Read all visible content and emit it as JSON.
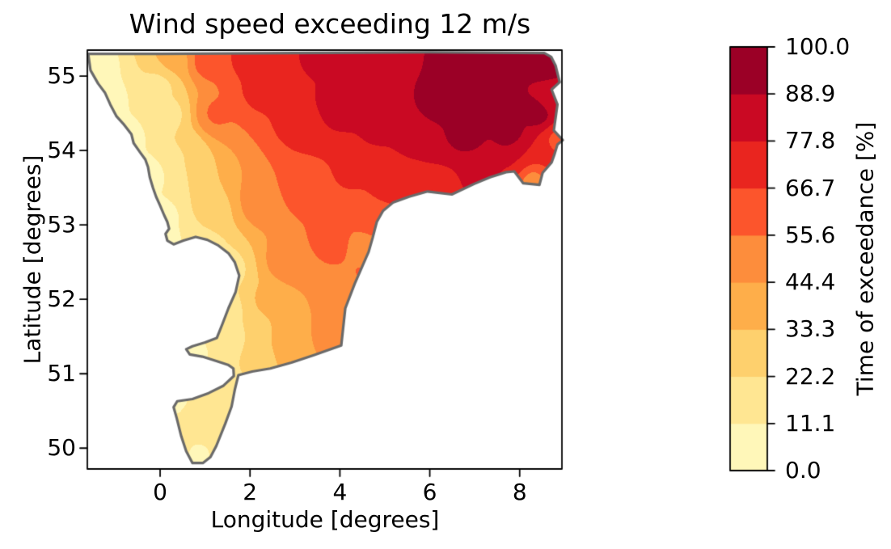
{
  "figure": {
    "background": "#ffffff"
  },
  "chart_data": {
    "type": "filled_contour_map",
    "title": "Wind speed exceeding 12 m/s",
    "xlabel": "Longitude [degrees]",
    "ylabel": "Latitude [degrees]",
    "xlim": [
      -1.62,
      8.94
    ],
    "ylim": [
      49.72,
      55.35
    ],
    "xticks": {
      "values": [
        0,
        2,
        4,
        6,
        8
      ],
      "labels": [
        "0",
        "2",
        "4",
        "6",
        "8"
      ]
    },
    "yticks": {
      "values": [
        50,
        51,
        52,
        53,
        54,
        55
      ],
      "labels": [
        "50",
        "51",
        "52",
        "53",
        "54",
        "55"
      ]
    },
    "grid": false,
    "land_color": "#ffffff",
    "coastline_color": "#6a6a6a",
    "colorbar": {
      "label": "Time of exceedance [%]",
      "vmin": 0.0,
      "vmax": 100.0,
      "levels": [
        0.0,
        11.1,
        22.2,
        33.3,
        44.4,
        55.6,
        66.7,
        77.8,
        88.9,
        100.0
      ],
      "tick_labels_bottom_to_top": [
        "0.0",
        "11.1",
        "22.2",
        "33.3",
        "44.4",
        "55.6",
        "66.7",
        "77.8",
        "88.9",
        "100.0"
      ],
      "band_colors_low_to_high": [
        "#FFF7B9",
        "#FFE692",
        "#FED06D",
        "#FEAE4A",
        "#FD8D3C",
        "#FC552C",
        "#E9251F",
        "#CA0923",
        "#9B0026"
      ]
    },
    "region_outline_lonlat": [
      [
        -1.6,
        55.3
      ],
      [
        -1.55,
        55.08
      ],
      [
        -1.38,
        54.9
      ],
      [
        -1.23,
        54.78
      ],
      [
        -1.11,
        54.62
      ],
      [
        -0.97,
        54.46
      ],
      [
        -0.82,
        54.36
      ],
      [
        -0.64,
        54.22
      ],
      [
        -0.59,
        54.1
      ],
      [
        -0.45,
        53.98
      ],
      [
        -0.33,
        53.88
      ],
      [
        -0.27,
        53.78
      ],
      [
        -0.23,
        53.64
      ],
      [
        -0.16,
        53.5
      ],
      [
        -0.09,
        53.38
      ],
      [
        0.0,
        53.26
      ],
      [
        0.09,
        53.13
      ],
      [
        0.16,
        53.04
      ],
      [
        0.2,
        52.95
      ],
      [
        0.12,
        52.88
      ],
      [
        0.16,
        52.79
      ],
      [
        0.3,
        52.74
      ],
      [
        0.52,
        52.79
      ],
      [
        0.79,
        52.84
      ],
      [
        1.05,
        52.8
      ],
      [
        1.28,
        52.73
      ],
      [
        1.52,
        52.62
      ],
      [
        1.66,
        52.5
      ],
      [
        1.76,
        52.32
      ],
      [
        1.68,
        52.1
      ],
      [
        1.52,
        51.88
      ],
      [
        1.38,
        51.66
      ],
      [
        1.26,
        51.48
      ],
      [
        1.0,
        51.42
      ],
      [
        0.72,
        51.37
      ],
      [
        0.58,
        51.33
      ],
      [
        0.66,
        51.26
      ],
      [
        0.94,
        51.23
      ],
      [
        1.25,
        51.17
      ],
      [
        1.51,
        51.12
      ],
      [
        1.63,
        51.07
      ],
      [
        1.64,
        50.97
      ],
      [
        1.41,
        50.84
      ],
      [
        1.08,
        50.74
      ],
      [
        0.72,
        50.66
      ],
      [
        0.38,
        50.63
      ],
      [
        0.3,
        50.55
      ],
      [
        0.37,
        50.4
      ],
      [
        0.47,
        50.16
      ],
      [
        0.58,
        49.96
      ],
      [
        0.72,
        49.8
      ],
      [
        0.95,
        49.8
      ],
      [
        1.12,
        49.88
      ],
      [
        1.25,
        50.03
      ],
      [
        1.45,
        50.33
      ],
      [
        1.59,
        50.56
      ],
      [
        1.66,
        50.78
      ],
      [
        1.74,
        50.98
      ],
      [
        2.05,
        51.03
      ],
      [
        2.45,
        51.07
      ],
      [
        2.92,
        51.15
      ],
      [
        3.42,
        51.25
      ],
      [
        4.03,
        51.38
      ],
      [
        4.12,
        51.88
      ],
      [
        4.33,
        52.21
      ],
      [
        4.51,
        52.46
      ],
      [
        4.64,
        52.64
      ],
      [
        4.73,
        52.83
      ],
      [
        4.82,
        53.04
      ],
      [
        4.96,
        53.19
      ],
      [
        5.18,
        53.3
      ],
      [
        5.54,
        53.38
      ],
      [
        5.95,
        53.45
      ],
      [
        6.49,
        53.41
      ],
      [
        6.98,
        53.55
      ],
      [
        7.34,
        53.64
      ],
      [
        7.7,
        53.71
      ],
      [
        7.88,
        53.72
      ],
      [
        8.08,
        53.56
      ],
      [
        8.44,
        53.54
      ],
      [
        8.51,
        53.7
      ],
      [
        8.71,
        53.84
      ],
      [
        8.78,
        53.96
      ],
      [
        8.84,
        54.08
      ],
      [
        8.96,
        54.14
      ],
      [
        8.76,
        54.27
      ],
      [
        8.84,
        54.62
      ],
      [
        8.71,
        54.82
      ],
      [
        8.89,
        54.92
      ],
      [
        8.8,
        55.14
      ],
      [
        8.7,
        55.26
      ],
      [
        8.55,
        55.31
      ],
      [
        6.0,
        55.32
      ],
      [
        3.0,
        55.31
      ],
      [
        0.0,
        55.3
      ]
    ],
    "value_control_points_lon_lat_pct": [
      [
        -1.45,
        55.15,
        5
      ],
      [
        -1.2,
        54.7,
        5
      ],
      [
        -0.75,
        54.2,
        6
      ],
      [
        -0.3,
        53.7,
        6
      ],
      [
        0.05,
        53.1,
        7
      ],
      [
        0.3,
        52.8,
        10
      ],
      [
        0.9,
        52.7,
        14
      ],
      [
        1.5,
        52.4,
        16
      ],
      [
        1.5,
        51.9,
        18
      ],
      [
        1.3,
        51.4,
        12
      ],
      [
        0.8,
        51.3,
        9
      ],
      [
        1.1,
        50.9,
        12
      ],
      [
        0.5,
        50.55,
        9
      ],
      [
        0.8,
        50.4,
        20
      ],
      [
        0.9,
        50.0,
        10
      ],
      [
        1.3,
        50.2,
        14
      ],
      [
        1.6,
        50.7,
        14
      ],
      [
        2.2,
        51.15,
        30
      ],
      [
        3.0,
        51.3,
        42
      ],
      [
        3.8,
        51.45,
        48
      ],
      [
        4.3,
        51.9,
        52
      ],
      [
        4.5,
        52.4,
        56
      ],
      [
        2.3,
        52.0,
        35
      ],
      [
        2.8,
        52.5,
        52
      ],
      [
        3.8,
        52.8,
        60
      ],
      [
        4.55,
        52.75,
        50
      ],
      [
        4.7,
        53.0,
        60
      ],
      [
        1.2,
        53.2,
        30
      ],
      [
        2.2,
        53.3,
        52
      ],
      [
        3.2,
        53.5,
        62
      ],
      [
        4.2,
        53.7,
        68
      ],
      [
        0.5,
        54.0,
        22
      ],
      [
        0.2,
        54.5,
        18
      ],
      [
        0.0,
        54.9,
        18
      ],
      [
        0.3,
        55.2,
        38
      ],
      [
        1.2,
        54.5,
        58
      ],
      [
        1.0,
        55.2,
        62
      ],
      [
        2.2,
        54.8,
        70
      ],
      [
        2.0,
        55.25,
        73
      ],
      [
        3.2,
        54.4,
        76
      ],
      [
        3.5,
        55.25,
        80
      ],
      [
        4.0,
        54.6,
        85
      ],
      [
        5.0,
        53.5,
        68
      ],
      [
        5.6,
        53.55,
        70
      ],
      [
        6.3,
        53.55,
        75
      ],
      [
        7.1,
        53.7,
        82
      ],
      [
        7.9,
        53.85,
        80
      ],
      [
        8.25,
        53.65,
        45
      ],
      [
        8.15,
        54.0,
        78
      ],
      [
        4.8,
        54.3,
        80
      ],
      [
        4.8,
        55.25,
        85
      ],
      [
        5.8,
        54.2,
        88
      ],
      [
        6.2,
        54.7,
        95
      ],
      [
        6.8,
        54.2,
        94
      ],
      [
        7.3,
        54.8,
        99
      ],
      [
        7.8,
        54.2,
        97
      ],
      [
        8.4,
        54.5,
        97
      ],
      [
        8.6,
        55.2,
        98
      ],
      [
        6.5,
        55.25,
        92
      ],
      [
        8.85,
        54.15,
        60
      ],
      [
        8.6,
        53.9,
        70
      ],
      [
        8.75,
        54.7,
        78
      ]
    ]
  }
}
